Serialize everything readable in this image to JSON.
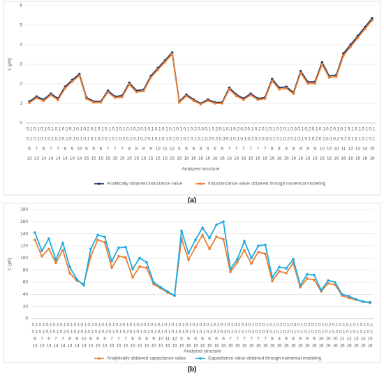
{
  "chart_data": [
    {
      "type": "line",
      "ylabel": "L [μH]",
      "xlabel": "Analyzed structure",
      "caption": "(a)",
      "categories": [
        [
          "0.1",
          "0.1",
          "6",
          "13"
        ],
        [
          "0.1",
          "0.1",
          "7",
          "13"
        ],
        [
          "0.1",
          "0.1",
          "6",
          "14"
        ],
        [
          "0.1",
          "0.1",
          "7",
          "14"
        ],
        [
          "0.1",
          "0.2",
          "7",
          "14"
        ],
        [
          "0.1",
          "0.1",
          "8",
          "14"
        ],
        [
          "0.1",
          "0.1",
          "9",
          "14"
        ],
        [
          "0.1",
          "0.1",
          "10",
          "14"
        ],
        [
          "0.2",
          "0.1",
          "6",
          "15"
        ],
        [
          "0.1",
          "0.1",
          "6",
          "15"
        ],
        [
          "0.1",
          "0.2",
          "6",
          "15"
        ],
        [
          "0.1",
          "0.1",
          "7",
          "15"
        ],
        [
          "0.2",
          "0.1",
          "7",
          "15"
        ],
        [
          "0.1",
          "0.2",
          "7",
          "15"
        ],
        [
          "0.1",
          "0.1",
          "8",
          "15"
        ],
        [
          "0.2",
          "0.1",
          "8",
          "15"
        ],
        [
          "0.1",
          "0.2",
          "8",
          "15"
        ],
        [
          "0.1",
          "0.1",
          "9",
          "15"
        ],
        [
          "0.1",
          "0.1",
          "10",
          "15"
        ],
        [
          "0.1",
          "0.1",
          "11",
          "15"
        ],
        [
          "0.1",
          "0.1",
          "12",
          "15"
        ],
        [
          "0.1",
          "0.1",
          "5",
          "16"
        ],
        [
          "0.1",
          "0.1",
          "6",
          "16"
        ],
        [
          "0.2",
          "0.1",
          "6",
          "16"
        ],
        [
          "0.3",
          "0.1",
          "6",
          "16"
        ],
        [
          "0.1",
          "0.2",
          "6",
          "16"
        ],
        [
          "0.2",
          "0.2",
          "6",
          "16"
        ],
        [
          "0.1",
          "0.3",
          "6",
          "16"
        ],
        [
          "0.1",
          "0.1",
          "7",
          "16"
        ],
        [
          "0.2",
          "0.1",
          "7",
          "16"
        ],
        [
          "0.3",
          "0.1",
          "7",
          "16"
        ],
        [
          "0.1",
          "0.2",
          "7",
          "16"
        ],
        [
          "0.2",
          "0.2",
          "7",
          "16"
        ],
        [
          "0.1",
          "0.3",
          "7",
          "16"
        ],
        [
          "0.1",
          "0.1",
          "8",
          "16"
        ],
        [
          "0.2",
          "0.1",
          "8",
          "16"
        ],
        [
          "0.1",
          "0.2",
          "8",
          "16"
        ],
        [
          "0.3",
          "0.1",
          "8",
          "16"
        ],
        [
          "0.1",
          "0.1",
          "9",
          "16"
        ],
        [
          "0.2",
          "0.1",
          "9",
          "16"
        ],
        [
          "0.1",
          "0.2",
          "9",
          "16"
        ],
        [
          "0.1",
          "0.1",
          "10",
          "16"
        ],
        [
          "0.2",
          "0.1",
          "10",
          "16"
        ],
        [
          "0.1",
          "0.2",
          "10",
          "16"
        ],
        [
          "0.1",
          "0.1",
          "11",
          "16"
        ],
        [
          "0.1",
          "0.1",
          "12",
          "16"
        ],
        [
          "0.1",
          "0.1",
          "13",
          "16"
        ],
        [
          "0.1",
          "0.1",
          "14",
          "16"
        ],
        [
          "0.1",
          "0.1",
          "15",
          "16"
        ]
      ],
      "series": [
        {
          "name": "Analitically obtained inductance value",
          "color": "#1f3864",
          "values": [
            1.1,
            1.35,
            1.2,
            1.5,
            1.25,
            1.85,
            2.2,
            2.5,
            1.3,
            1.1,
            1.1,
            1.65,
            1.35,
            1.4,
            2.05,
            1.65,
            1.7,
            2.4,
            2.8,
            3.2,
            3.6,
            1.1,
            1.45,
            1.2,
            1.0,
            1.2,
            1.05,
            1.05,
            1.8,
            1.45,
            1.25,
            1.5,
            1.25,
            1.3,
            2.25,
            1.8,
            1.85,
            1.55,
            2.65,
            2.1,
            2.1,
            3.1,
            2.4,
            2.45,
            3.55,
            4.0,
            4.45,
            4.9,
            5.35
          ]
        },
        {
          "name": "Inductancance value obtained through numerical modeling",
          "color": "#ed7d31",
          "values": [
            1.03,
            1.28,
            1.13,
            1.43,
            1.18,
            1.77,
            2.12,
            2.42,
            1.24,
            1.05,
            1.05,
            1.58,
            1.29,
            1.33,
            1.97,
            1.58,
            1.63,
            2.32,
            2.72,
            3.12,
            3.52,
            1.05,
            1.38,
            1.14,
            0.96,
            1.14,
            1.0,
            1.0,
            1.72,
            1.38,
            1.19,
            1.43,
            1.19,
            1.24,
            2.16,
            1.72,
            1.77,
            1.49,
            2.56,
            2.02,
            2.02,
            3.0,
            2.32,
            2.37,
            3.45,
            3.9,
            4.35,
            4.8,
            5.25
          ]
        }
      ],
      "ylim": [
        0,
        6
      ],
      "yticks": [
        0,
        1,
        2,
        3,
        4,
        5,
        6
      ],
      "grid": true,
      "legend": "bottom"
    },
    {
      "type": "line",
      "ylabel": "C [pF]",
      "xlabel": "Analyzed structure",
      "caption": "(b)",
      "categories": [
        [
          "0.1",
          "0.1",
          "6",
          "13"
        ],
        [
          "0.1",
          "0.1",
          "7",
          "13"
        ],
        [
          "0.1",
          "0.1",
          "6",
          "14"
        ],
        [
          "0.1",
          "0.1",
          "7",
          "14"
        ],
        [
          "0.1",
          "0.2",
          "7",
          "14"
        ],
        [
          "0.1",
          "0.1",
          "8",
          "14"
        ],
        [
          "0.1",
          "0.1",
          "9",
          "14"
        ],
        [
          "0.1",
          "0.1",
          "10",
          "14"
        ],
        [
          "0.2",
          "0.1",
          "6",
          "15"
        ],
        [
          "0.1",
          "0.1",
          "6",
          "15"
        ],
        [
          "0.1",
          "0.2",
          "6",
          "15"
        ],
        [
          "0.1",
          "0.1",
          "7",
          "15"
        ],
        [
          "0.2",
          "0.1",
          "7",
          "15"
        ],
        [
          "0.1",
          "0.2",
          "7",
          "15"
        ],
        [
          "0.1",
          "0.1",
          "8",
          "15"
        ],
        [
          "0.2",
          "0.1",
          "8",
          "15"
        ],
        [
          "0.1",
          "0.2",
          "8",
          "15"
        ],
        [
          "0.1",
          "0.1",
          "9",
          "15"
        ],
        [
          "0.1",
          "0.1",
          "10",
          "15"
        ],
        [
          "0.1",
          "0.1",
          "11",
          "15"
        ],
        [
          "0.1",
          "0.1",
          "12",
          "15"
        ],
        [
          "0.1",
          "0.1",
          "5",
          "16"
        ],
        [
          "0.1",
          "0.1",
          "6",
          "16"
        ],
        [
          "0.2",
          "0.1",
          "6",
          "16"
        ],
        [
          "0.3",
          "0.1",
          "6",
          "16"
        ],
        [
          "0.1",
          "0.2",
          "6",
          "16"
        ],
        [
          "0.2",
          "0.2",
          "6",
          "16"
        ],
        [
          "0.1",
          "0.3",
          "6",
          "16"
        ],
        [
          "0.1",
          "0.1",
          "7",
          "16"
        ],
        [
          "0.2",
          "0.1",
          "7",
          "16"
        ],
        [
          "0.3",
          "0.1",
          "7",
          "16"
        ],
        [
          "0.1",
          "0.2",
          "7",
          "16"
        ],
        [
          "0.2",
          "0.2",
          "7",
          "16"
        ],
        [
          "0.1",
          "0.3",
          "7",
          "16"
        ],
        [
          "0.1",
          "0.1",
          "8",
          "16"
        ],
        [
          "0.2",
          "0.1",
          "8",
          "16"
        ],
        [
          "0.1",
          "0.2",
          "8",
          "16"
        ],
        [
          "0.3",
          "0.1",
          "8",
          "16"
        ],
        [
          "0.1",
          "0.1",
          "9",
          "16"
        ],
        [
          "0.2",
          "0.1",
          "9",
          "16"
        ],
        [
          "0.1",
          "0.2",
          "9",
          "16"
        ],
        [
          "0.1",
          "0.1",
          "10",
          "16"
        ],
        [
          "0.2",
          "0.1",
          "10",
          "16"
        ],
        [
          "0.1",
          "0.2",
          "10",
          "16"
        ],
        [
          "0.1",
          "0.1",
          "11",
          "16"
        ],
        [
          "0.1",
          "0.1",
          "12",
          "16"
        ],
        [
          "0.1",
          "0.1",
          "13",
          "16"
        ],
        [
          "0.1",
          "0.1",
          "14",
          "16"
        ],
        [
          "0.1",
          "0.1",
          "15",
          "16"
        ]
      ],
      "series": [
        {
          "name": "Analytically obtained capacitance value",
          "color": "#ed7d31",
          "values": [
            130,
            103,
            115,
            92,
            113,
            75,
            63,
            57,
            103,
            130,
            126,
            84,
            103,
            101,
            68,
            86,
            84,
            57,
            50,
            43,
            38,
            132,
            97,
            118,
            138,
            115,
            135,
            131,
            77,
            93,
            113,
            91,
            110,
            107,
            62,
            78,
            75,
            92,
            52,
            66,
            64,
            45,
            58,
            56,
            38,
            34,
            31,
            28,
            26
          ]
        },
        {
          "name": "Capacitance value obtained through numerical modeling",
          "color": "#1cabe2",
          "values": [
            142,
            112,
            132,
            97,
            125,
            85,
            65,
            55,
            115,
            138,
            135,
            95,
            117,
            118,
            82,
            100,
            93,
            60,
            52,
            45,
            38,
            145,
            108,
            130,
            150,
            133,
            155,
            160,
            82,
            98,
            128,
            100,
            120,
            122,
            68,
            85,
            83,
            98,
            55,
            73,
            72,
            47,
            63,
            60,
            40,
            37,
            32,
            28,
            27
          ]
        }
      ],
      "ylim": [
        0,
        180
      ],
      "yticks": [
        0,
        20,
        40,
        60,
        80,
        100,
        120,
        140,
        160,
        180
      ],
      "grid": true,
      "legend": "bottom"
    }
  ]
}
